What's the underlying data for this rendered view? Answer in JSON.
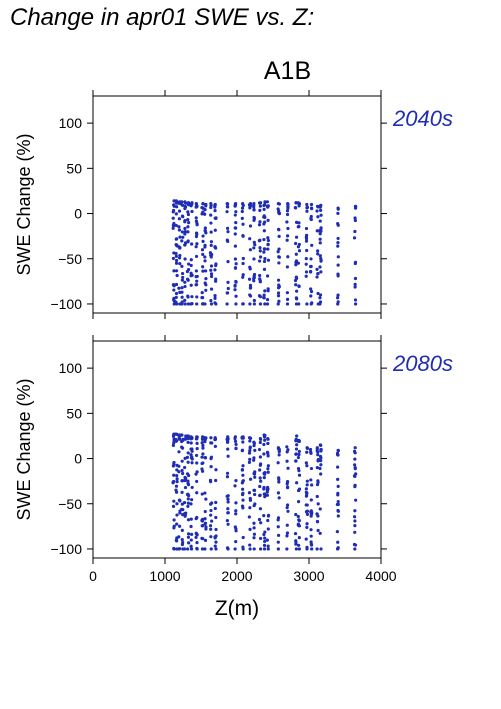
{
  "page": {
    "title": "Change in apr01 SWE vs. Z:",
    "scenario": "A1B",
    "x_label": "Z(m)"
  },
  "colors": {
    "points": "#1e2db4",
    "axes": "#000000",
    "background": "#ffffff"
  },
  "chart_data": [
    {
      "type": "scatter",
      "period_label": "2040s",
      "xlabel": "",
      "ylabel": "SWE Change (%)",
      "xlim": [
        0,
        4000
      ],
      "ylim": [
        -110,
        130
      ],
      "yticks": [
        100,
        50,
        0,
        -50,
        -100
      ],
      "xticks": [
        0,
        1000,
        2000,
        3000,
        4000
      ],
      "show_x_tick_labels": false,
      "elevation_bands": [
        {
          "z": 1120,
          "ymin": -100,
          "ymax": 14
        },
        {
          "z": 1160,
          "ymin": -100,
          "ymax": 14
        },
        {
          "z": 1200,
          "ymin": -100,
          "ymax": 13
        },
        {
          "z": 1240,
          "ymin": -100,
          "ymax": 13
        },
        {
          "z": 1280,
          "ymin": -100,
          "ymax": 13
        },
        {
          "z": 1320,
          "ymin": -100,
          "ymax": 12
        },
        {
          "z": 1370,
          "ymin": -100,
          "ymax": 12
        },
        {
          "z": 1440,
          "ymin": -100,
          "ymax": 11
        },
        {
          "z": 1520,
          "ymin": -100,
          "ymax": 11
        },
        {
          "z": 1560,
          "ymin": -100,
          "ymax": 10
        },
        {
          "z": 1640,
          "ymin": -100,
          "ymax": 11
        },
        {
          "z": 1700,
          "ymin": -100,
          "ymax": 10
        },
        {
          "z": 1870,
          "ymin": -100,
          "ymax": 11
        },
        {
          "z": 1980,
          "ymin": -100,
          "ymax": 11
        },
        {
          "z": 2080,
          "ymin": -100,
          "ymax": 11
        },
        {
          "z": 2180,
          "ymin": -100,
          "ymax": 11
        },
        {
          "z": 2240,
          "ymin": -100,
          "ymax": 11
        },
        {
          "z": 2320,
          "ymin": -100,
          "ymax": 12
        },
        {
          "z": 2380,
          "ymin": -100,
          "ymax": 13
        },
        {
          "z": 2430,
          "ymin": -100,
          "ymax": 13
        },
        {
          "z": 2580,
          "ymin": -100,
          "ymax": 11
        },
        {
          "z": 2700,
          "ymin": -100,
          "ymax": 11
        },
        {
          "z": 2820,
          "ymin": -100,
          "ymax": 12
        },
        {
          "z": 2860,
          "ymin": -100,
          "ymax": 12
        },
        {
          "z": 2970,
          "ymin": -100,
          "ymax": 10
        },
        {
          "z": 3030,
          "ymin": -100,
          "ymax": 10
        },
        {
          "z": 3120,
          "ymin": -100,
          "ymax": 8
        },
        {
          "z": 3160,
          "ymin": -100,
          "ymax": 9
        },
        {
          "z": 3400,
          "ymin": -100,
          "ymax": 6
        },
        {
          "z": 3640,
          "ymin": -100,
          "ymax": 8
        }
      ]
    },
    {
      "type": "scatter",
      "period_label": "2080s",
      "xlabel": "Z(m)",
      "ylabel": "SWE Change (%)",
      "xlim": [
        0,
        4000
      ],
      "ylim": [
        -110,
        130
      ],
      "yticks": [
        100,
        50,
        0,
        -50,
        -100
      ],
      "xticks": [
        0,
        1000,
        2000,
        3000,
        4000
      ],
      "show_x_tick_labels": true,
      "elevation_bands": [
        {
          "z": 1120,
          "ymin": -100,
          "ymax": 27
        },
        {
          "z": 1160,
          "ymin": -100,
          "ymax": 27
        },
        {
          "z": 1200,
          "ymin": -100,
          "ymax": 26
        },
        {
          "z": 1240,
          "ymin": -100,
          "ymax": 26
        },
        {
          "z": 1280,
          "ymin": -100,
          "ymax": 25
        },
        {
          "z": 1320,
          "ymin": -100,
          "ymax": 25
        },
        {
          "z": 1370,
          "ymin": -100,
          "ymax": 24
        },
        {
          "z": 1440,
          "ymin": -100,
          "ymax": 24
        },
        {
          "z": 1520,
          "ymin": -100,
          "ymax": 24
        },
        {
          "z": 1560,
          "ymin": -100,
          "ymax": 23
        },
        {
          "z": 1640,
          "ymin": -100,
          "ymax": 23
        },
        {
          "z": 1700,
          "ymin": -100,
          "ymax": 23
        },
        {
          "z": 1870,
          "ymin": -100,
          "ymax": 24
        },
        {
          "z": 1980,
          "ymin": -100,
          "ymax": 24
        },
        {
          "z": 2080,
          "ymin": -100,
          "ymax": 24
        },
        {
          "z": 2180,
          "ymin": -100,
          "ymax": 23
        },
        {
          "z": 2240,
          "ymin": -100,
          "ymax": 18
        },
        {
          "z": 2320,
          "ymin": -100,
          "ymax": 22
        },
        {
          "z": 2380,
          "ymin": -100,
          "ymax": 26
        },
        {
          "z": 2430,
          "ymin": -100,
          "ymax": 22
        },
        {
          "z": 2580,
          "ymin": -100,
          "ymax": 12
        },
        {
          "z": 2700,
          "ymin": -100,
          "ymax": 13
        },
        {
          "z": 2820,
          "ymin": -100,
          "ymax": 25
        },
        {
          "z": 2860,
          "ymin": -100,
          "ymax": 20
        },
        {
          "z": 2970,
          "ymin": -100,
          "ymax": 12
        },
        {
          "z": 3030,
          "ymin": -100,
          "ymax": 10
        },
        {
          "z": 3120,
          "ymin": -100,
          "ymax": 12
        },
        {
          "z": 3160,
          "ymin": -100,
          "ymax": 15
        },
        {
          "z": 3400,
          "ymin": -100,
          "ymax": 9
        },
        {
          "z": 3640,
          "ymin": -100,
          "ymax": 12
        }
      ]
    }
  ]
}
